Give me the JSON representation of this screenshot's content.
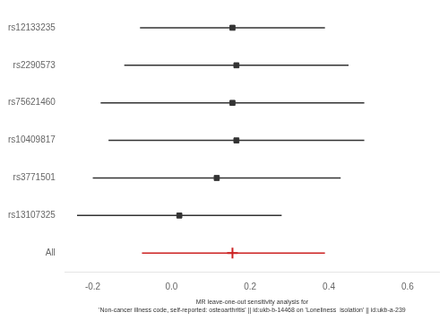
{
  "chart_data": {
    "type": "forest",
    "orientation": "horizontal",
    "categories": [
      "rs12133235",
      "rs2290573",
      "rs75621460",
      "rs10409817",
      "rs3771501",
      "rs13107325",
      "All"
    ],
    "series": [
      {
        "color": "#333333",
        "marker": "square",
        "values": [
          0.155,
          0.165,
          0.155,
          0.165,
          0.115,
          0.02,
          null
        ],
        "ci_low": [
          -0.08,
          -0.12,
          -0.18,
          -0.16,
          -0.2,
          -0.24,
          null
        ],
        "ci_high": [
          0.39,
          0.45,
          0.49,
          0.49,
          0.43,
          0.28,
          null
        ]
      },
      {
        "color": "#cc2222",
        "marker": "cross",
        "values": [
          null,
          null,
          null,
          null,
          null,
          null,
          0.155
        ],
        "ci_low": [
          null,
          null,
          null,
          null,
          null,
          null,
          -0.075
        ],
        "ci_high": [
          null,
          null,
          null,
          null,
          null,
          null,
          0.39
        ]
      }
    ],
    "xlabel": [
      "MR leave-one-out sensitivity analysis for",
      "'Non-cancer illness code, self-reported: osteoarthritis' || id:ukb-b-14468 on 'Loneliness  isolation' || id:ukb-a-239"
    ],
    "xlim": [
      -0.27,
      0.68
    ],
    "xticks": [
      -0.2,
      {
        "value": 0,
        "label": "0.0"
      },
      0.2,
      0.4,
      0.6
    ],
    "grid": false
  }
}
